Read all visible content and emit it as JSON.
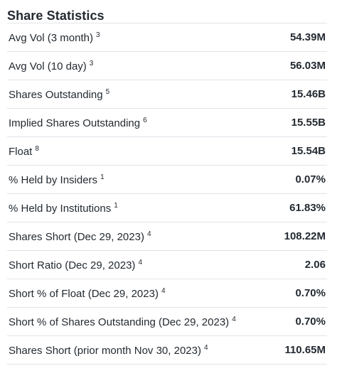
{
  "section": {
    "title": "Share Statistics"
  },
  "rows": [
    {
      "label": "Avg Vol (3 month)",
      "footnote": "3",
      "value": "54.39M"
    },
    {
      "label": "Avg Vol (10 day)",
      "footnote": "3",
      "value": "56.03M"
    },
    {
      "label": "Shares Outstanding",
      "footnote": "5",
      "value": "15.46B"
    },
    {
      "label": "Implied Shares Outstanding",
      "footnote": "6",
      "value": "15.55B"
    },
    {
      "label": "Float",
      "footnote": "8",
      "value": "15.54B"
    },
    {
      "label": "% Held by Insiders",
      "footnote": "1",
      "value": "0.07%"
    },
    {
      "label": "% Held by Institutions",
      "footnote": "1",
      "value": "61.83%"
    },
    {
      "label": "Shares Short (Dec 29, 2023)",
      "footnote": "4",
      "value": "108.22M"
    },
    {
      "label": "Short Ratio (Dec 29, 2023)",
      "footnote": "4",
      "value": "2.06"
    },
    {
      "label": "Short % of Float (Dec 29, 2023)",
      "footnote": "4",
      "value": "0.70%"
    },
    {
      "label": "Short % of Shares Outstanding (Dec 29, 2023)",
      "footnote": "4",
      "value": "0.70%"
    },
    {
      "label": "Shares Short (prior month Nov 30, 2023)",
      "footnote": "4",
      "value": "110.65M"
    }
  ]
}
